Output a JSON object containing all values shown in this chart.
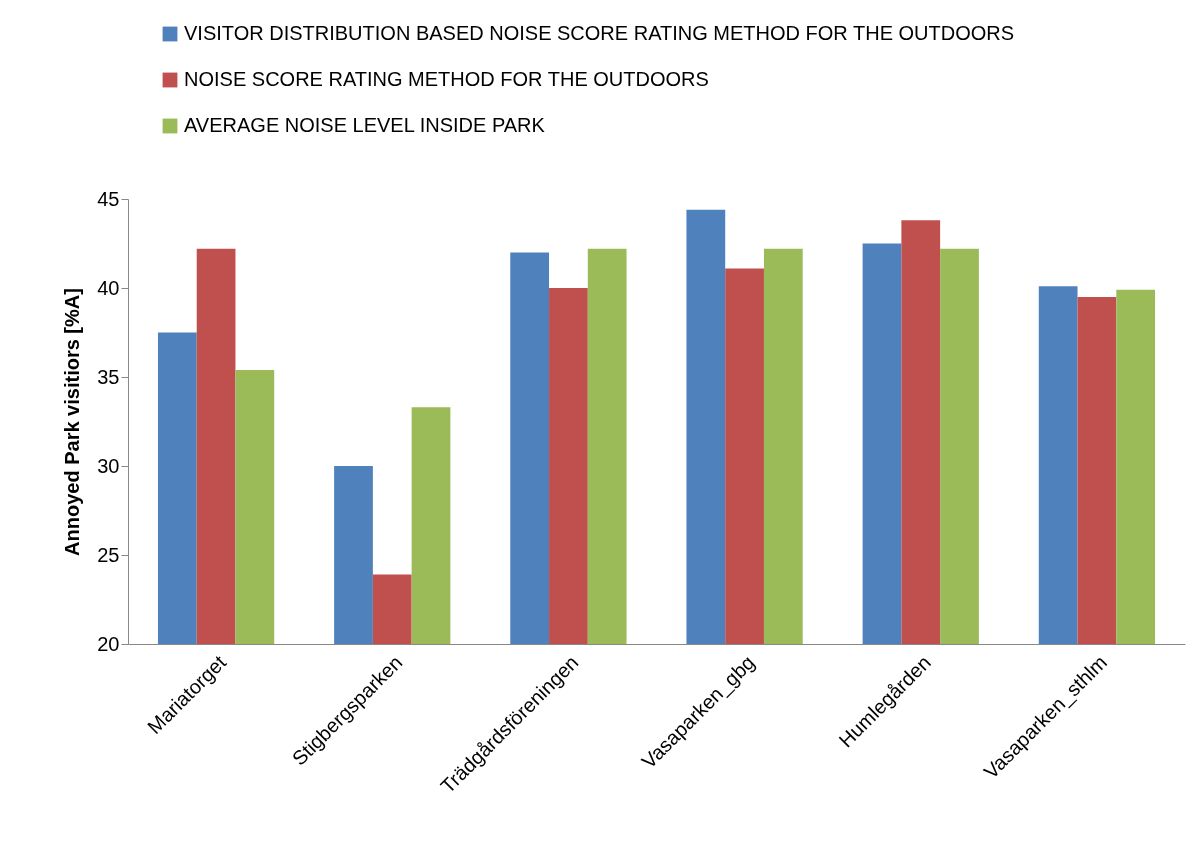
{
  "chart_data": {
    "type": "bar",
    "ylabel": "Annoyed Park visitiors [%A]",
    "categories": [
      "Mariatorget",
      "Stigbergsparken",
      "Trädgårdsföreningen",
      "Vasaparken_gbg",
      "Humlegården",
      "Vasaparken_sthlm"
    ],
    "series": [
      {
        "name": "VISITOR DISTRIBUTION BASED NOISE SCORE RATING METHOD FOR THE OUTDOORS",
        "color": "#4f81bd",
        "values": [
          37.5,
          30.0,
          42.0,
          44.4,
          42.5,
          40.1
        ]
      },
      {
        "name": "NOISE SCORE RATING METHOD FOR THE OUTDOORS",
        "color": "#c0504d",
        "values": [
          42.2,
          23.9,
          40.0,
          41.1,
          43.8,
          39.5
        ]
      },
      {
        "name": "AVERAGE NOISE LEVEL INSIDE PARK",
        "color": "#9bbb59",
        "values": [
          35.4,
          33.3,
          42.2,
          42.2,
          42.2,
          39.9
        ]
      }
    ],
    "ylim": [
      20,
      45
    ],
    "yticks": [
      20,
      25,
      30,
      35,
      40,
      45
    ],
    "grid": false,
    "legend": "top left"
  }
}
